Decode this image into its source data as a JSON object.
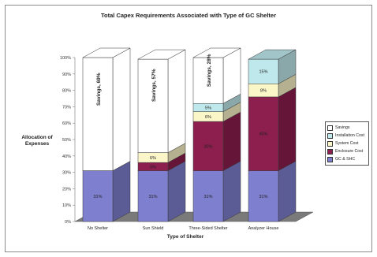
{
  "chart_data": {
    "type": "bar",
    "stacked": true,
    "three_d": true,
    "title": "Total Capex Requirements Associated with Type of GC Shelter",
    "xlabel": "Type of Shelter",
    "ylabel": "Allocation of Expenses",
    "ylim": [
      0,
      100
    ],
    "y_ticks": [
      "0%",
      "10%",
      "20%",
      "30%",
      "40%",
      "50%",
      "60%",
      "70%",
      "80%",
      "90%",
      "100%"
    ],
    "categories": [
      "No Shelter",
      "Sun Shield",
      "Three-Sided Shelter",
      "Analyzer House"
    ],
    "series": [
      {
        "name": "GC & SHC",
        "color": "#7f7fcf",
        "values": [
          31,
          31,
          31,
          31
        ],
        "labels": [
          "31%",
          "31%",
          "31%",
          "31%"
        ]
      },
      {
        "name": "Enclosure Cost",
        "color": "#8c1f4e",
        "values": [
          0,
          5,
          30,
          45
        ],
        "labels": [
          "",
          "5%",
          "30%",
          "45%"
        ]
      },
      {
        "name": "System Cost",
        "color": "#fbf6c8",
        "values": [
          0,
          6,
          6,
          8
        ],
        "labels": [
          "",
          "6%",
          "6%",
          "8%"
        ]
      },
      {
        "name": "Installation Cost",
        "color": "#bfe8ec",
        "values": [
          0,
          0,
          5,
          15
        ],
        "labels": [
          "",
          "",
          "5%",
          "15%"
        ]
      },
      {
        "name": "Savings",
        "color": "#ffffff",
        "values": [
          69,
          57,
          28,
          0
        ],
        "labels": [
          "Savings, 69%",
          "Savings, 57%",
          "Savings, 28%",
          ""
        ]
      }
    ],
    "legend_position": "right",
    "legend_order": [
      "Savings",
      "Installation Cost",
      "System Cost",
      "Enclosure Cost",
      "GC & SHC"
    ],
    "grid": false
  }
}
